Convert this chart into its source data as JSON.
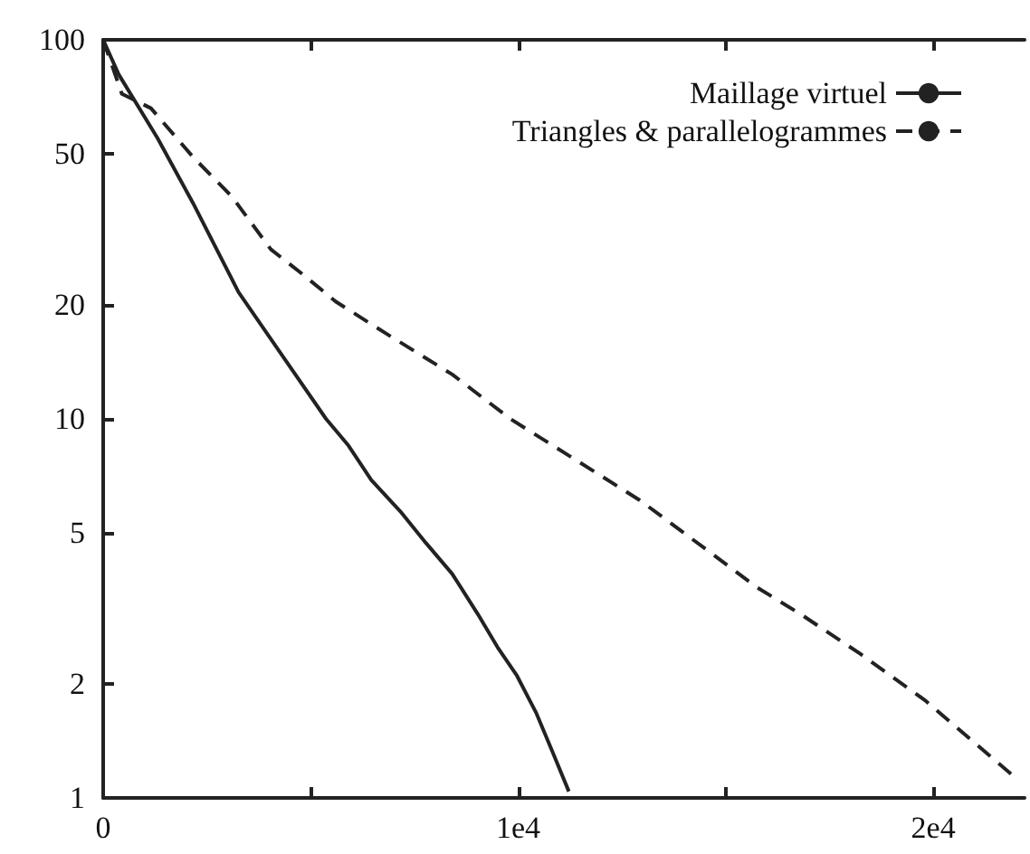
{
  "chart_data": {
    "type": "line",
    "log": "y",
    "xlim": [
      0,
      22200
    ],
    "ylim": [
      1,
      100
    ],
    "xticks": [
      0,
      {
        "value": 5000,
        "label": null
      },
      {
        "value": 10000,
        "label": "1e4"
      },
      {
        "value": 15000,
        "label": null
      },
      {
        "value": 20000,
        "label": "2e4"
      }
    ],
    "yticks": [
      1,
      2,
      5,
      10,
      20,
      50,
      100
    ],
    "grid": false,
    "legend": "top right",
    "marker": "none",
    "series": [
      {
        "name": "Maillage virtuel",
        "color": "#222222",
        "line_style": "solid",
        "x": [
          0,
          375,
          1310,
          2170,
          3260,
          4350,
          5370,
          5910,
          6460,
          7160,
          7780,
          8410,
          9030,
          9500,
          9970,
          10440,
          10830,
          11220
        ],
        "values": [
          100,
          81,
          55,
          37,
          21.6,
          14.5,
          10,
          8.5,
          6.9,
          5.7,
          4.7,
          3.9,
          3.05,
          2.5,
          2.1,
          1.67,
          1.32,
          1.04
        ]
      },
      {
        "name": "Triangles & parallelogrammes",
        "color": "#222222",
        "line_style": "dashed",
        "x": [
          0,
          450,
          1150,
          2170,
          3100,
          4040,
          4820,
          5600,
          6850,
          8410,
          9810,
          11220,
          12930,
          14800,
          15740,
          16830,
          18240,
          19800,
          20890,
          21900
        ],
        "values": [
          100,
          72,
          66,
          49,
          38.6,
          28,
          24,
          20.4,
          16.7,
          13.1,
          10,
          8,
          6.1,
          4.3,
          3.6,
          3.04,
          2.4,
          1.81,
          1.43,
          1.15
        ]
      }
    ]
  }
}
